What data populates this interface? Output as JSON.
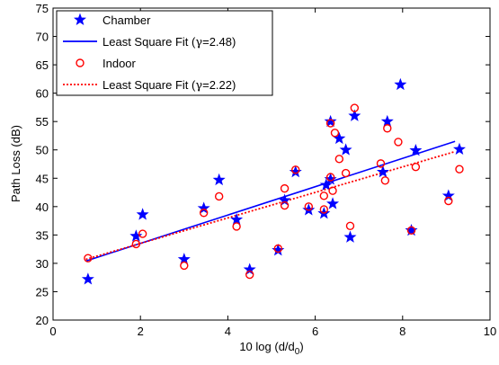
{
  "chart_data": {
    "type": "scatter",
    "xlabel": "10 log (d/d",
    "xlabel_sub": "0",
    "xlabel_tail": ")",
    "ylabel": "Path Loss (dB)",
    "xlim": [
      0,
      10
    ],
    "ylim": [
      20,
      75
    ],
    "xticks": [
      0,
      2,
      4,
      6,
      8,
      10
    ],
    "yticks": [
      20,
      25,
      30,
      35,
      40,
      45,
      50,
      55,
      60,
      65,
      70,
      75
    ],
    "grid": false,
    "legend_position": "top-left",
    "series": [
      {
        "name": "Chamber",
        "kind": "points",
        "marker": "star",
        "color": "#0000ff",
        "points": [
          [
            0.8,
            27.2
          ],
          [
            1.9,
            34.8
          ],
          [
            2.05,
            38.6
          ],
          [
            3.0,
            30.7
          ],
          [
            3.45,
            39.7
          ],
          [
            3.8,
            44.7
          ],
          [
            4.2,
            37.7
          ],
          [
            4.5,
            28.9
          ],
          [
            5.15,
            32.3
          ],
          [
            5.3,
            41.1
          ],
          [
            5.55,
            46.1
          ],
          [
            5.85,
            39.4
          ],
          [
            6.2,
            38.8
          ],
          [
            6.25,
            43.8
          ],
          [
            6.35,
            44.8
          ],
          [
            6.35,
            55.0
          ],
          [
            6.4,
            40.5
          ],
          [
            6.55,
            52.0
          ],
          [
            6.7,
            50.0
          ],
          [
            6.8,
            34.6
          ],
          [
            6.9,
            56.0
          ],
          [
            7.55,
            46.1
          ],
          [
            7.65,
            55.0
          ],
          [
            7.95,
            61.5
          ],
          [
            8.2,
            35.8
          ],
          [
            8.3,
            49.9
          ],
          [
            9.05,
            41.9
          ],
          [
            9.3,
            50.1
          ]
        ]
      },
      {
        "name": "Least Square Fit (",
        "name_symbol": "γ",
        "name_tail": "=2.48)",
        "kind": "line",
        "style": "solid",
        "color": "#0000ff",
        "points": [
          [
            0.75,
            30.4
          ],
          [
            9.2,
            51.5
          ]
        ]
      },
      {
        "name": "Indoor",
        "kind": "points",
        "marker": "circle",
        "color": "#ff0000",
        "points": [
          [
            0.8,
            30.9
          ],
          [
            1.9,
            33.4
          ],
          [
            2.05,
            35.2
          ],
          [
            3.0,
            29.6
          ],
          [
            3.45,
            38.9
          ],
          [
            3.8,
            41.8
          ],
          [
            4.2,
            36.5
          ],
          [
            4.5,
            28.0
          ],
          [
            5.15,
            32.6
          ],
          [
            5.3,
            43.2
          ],
          [
            5.3,
            40.2
          ],
          [
            5.55,
            46.5
          ],
          [
            5.85,
            40.0
          ],
          [
            6.2,
            41.9
          ],
          [
            6.2,
            39.5
          ],
          [
            6.35,
            45.2
          ],
          [
            6.35,
            54.7
          ],
          [
            6.4,
            42.8
          ],
          [
            6.45,
            53.0
          ],
          [
            6.55,
            48.4
          ],
          [
            6.7,
            45.9
          ],
          [
            6.8,
            36.6
          ],
          [
            6.9,
            57.4
          ],
          [
            7.5,
            47.6
          ],
          [
            7.6,
            44.6
          ],
          [
            7.65,
            53.8
          ],
          [
            7.9,
            51.4
          ],
          [
            8.2,
            35.8
          ],
          [
            8.3,
            47.0
          ],
          [
            9.05,
            41.0
          ],
          [
            9.3,
            46.6
          ]
        ]
      },
      {
        "name": "Least Square Fit (",
        "name_symbol": "γ",
        "name_tail": "=2.22)",
        "kind": "line",
        "style": "dotted",
        "color": "#ff0000",
        "points": [
          [
            0.75,
            30.7
          ],
          [
            9.2,
            49.7
          ]
        ]
      }
    ]
  }
}
